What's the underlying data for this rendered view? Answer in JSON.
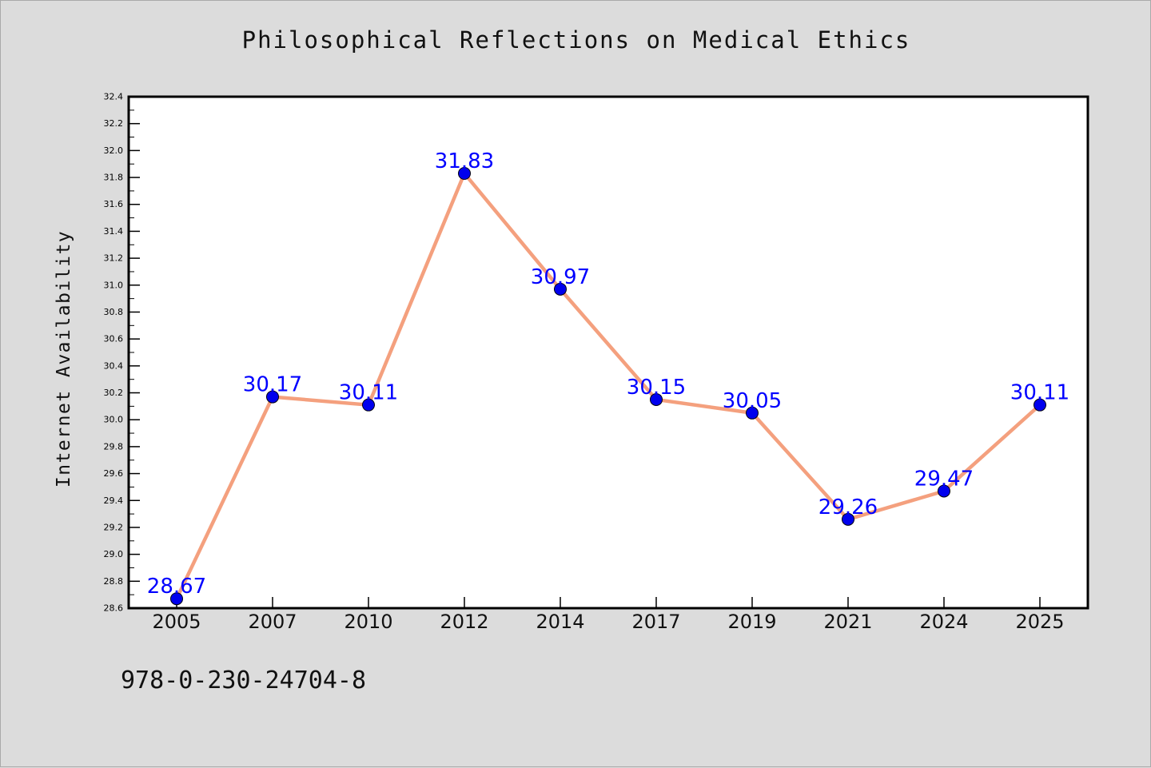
{
  "chart_data": {
    "type": "line",
    "title": "Philosophical Reflections on Medical Ethics",
    "ylabel": "Internet Availability",
    "xlabel": "",
    "categories": [
      "2005",
      "2007",
      "2010",
      "2012",
      "2014",
      "2017",
      "2019",
      "2021",
      "2024",
      "2025"
    ],
    "values": [
      28.67,
      30.17,
      30.11,
      31.83,
      30.97,
      30.15,
      30.05,
      29.26,
      29.47,
      30.11
    ],
    "data_labels": [
      "28.67",
      "30.17",
      "30.11",
      "31.83",
      "30.97",
      "30.15",
      "30.05",
      "29.26",
      "29.47",
      "30.11"
    ],
    "ylim": [
      28.6,
      32.4
    ],
    "yticks": [
      "28.6",
      "28.8",
      "29.0",
      "29.2",
      "29.4",
      "29.6",
      "29.8",
      "30.0",
      "30.2",
      "30.4",
      "30.6",
      "30.8",
      "31.0",
      "31.2",
      "31.4",
      "31.6",
      "31.8",
      "32.0",
      "32.2",
      "32.4"
    ],
    "grid": false,
    "line_color": "#f4a07e",
    "marker_color": "#0000ee",
    "label_color": "#0000ff"
  },
  "footer": {
    "code": "978-0-230-24704-8"
  }
}
